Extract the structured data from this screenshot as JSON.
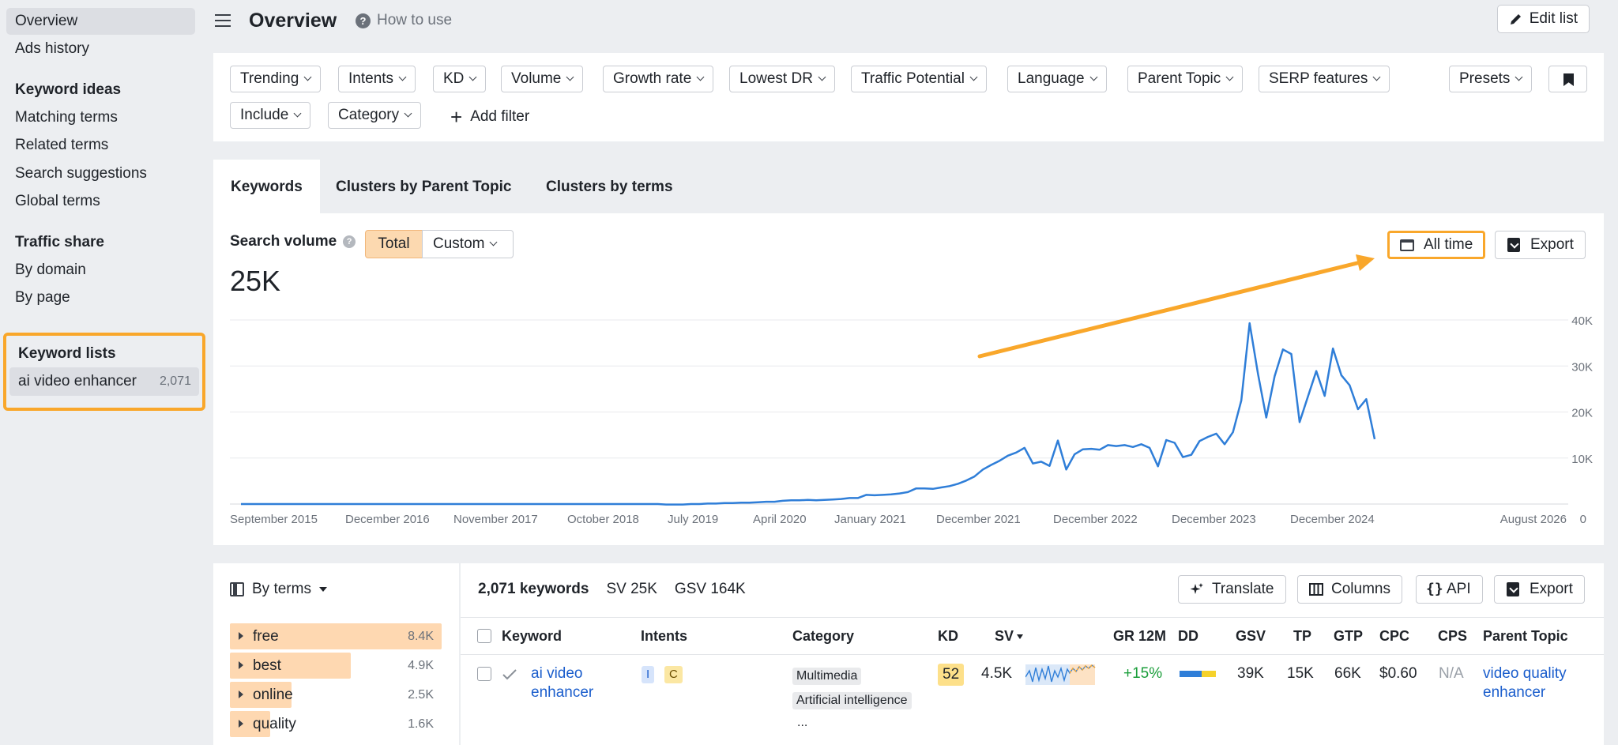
{
  "sidebar": {
    "top_items": [
      {
        "label": "Overview"
      },
      {
        "label": "Ads history"
      }
    ],
    "keyword_ideas": {
      "heading": "Keyword ideas",
      "items": [
        "Matching terms",
        "Related terms",
        "Search suggestions",
        "Global terms"
      ]
    },
    "traffic_share": {
      "heading": "Traffic share",
      "items": [
        "By domain",
        "By page"
      ]
    },
    "keyword_lists": {
      "heading": "Keyword lists",
      "list_name": "ai video enhancer",
      "list_count": "2,071"
    }
  },
  "header": {
    "title": "Overview",
    "how_to": "How to use",
    "edit_list": "Edit list"
  },
  "filters": {
    "row1": [
      "Trending",
      "Intents",
      "KD",
      "Volume",
      "Growth rate",
      "Lowest DR",
      "Traffic Potential",
      "Language",
      "Parent Topic",
      "SERP features"
    ],
    "row2": [
      "Include",
      "Category"
    ],
    "add_filter": "Add filter",
    "presets": "Presets"
  },
  "tabs": [
    "Keywords",
    "Clusters by Parent Topic",
    "Clusters by terms"
  ],
  "search_volume": {
    "label": "Search volume",
    "total": "Total",
    "custom": "Custom",
    "value": "25K",
    "all_time": "All time",
    "export": "Export"
  },
  "chart_data": {
    "type": "line",
    "title": "",
    "xlabel": "",
    "ylabel": "",
    "x_tick_labels": [
      "September 2015",
      "December 2016",
      "November 2017",
      "October 2018",
      "July 2019",
      "April 2020",
      "January 2021",
      "December 2021",
      "December 2022",
      "December 2023",
      "December 2024",
      "August 2026"
    ],
    "y_tick_labels": [
      "0",
      "10K",
      "20K",
      "30K",
      "40K"
    ],
    "ylim": [
      0,
      40000
    ],
    "series": [
      {
        "values": [
          [
            0,
            0
          ],
          [
            1,
            0
          ],
          [
            2,
            0
          ],
          [
            3,
            0
          ],
          [
            4,
            0
          ],
          [
            5,
            0
          ],
          [
            6,
            0
          ],
          [
            7,
            0
          ],
          [
            8,
            0
          ],
          [
            9,
            0
          ],
          [
            10,
            0
          ],
          [
            11,
            0
          ],
          [
            12,
            0
          ],
          [
            13,
            0
          ],
          [
            14,
            0
          ],
          [
            15,
            0
          ],
          [
            16,
            0
          ],
          [
            17,
            0
          ],
          [
            18,
            0
          ],
          [
            19,
            0
          ],
          [
            20,
            0
          ],
          [
            21,
            0
          ],
          [
            22,
            0
          ],
          [
            23,
            0
          ],
          [
            24,
            0
          ],
          [
            25,
            0
          ],
          [
            26,
            0
          ],
          [
            27,
            0
          ],
          [
            28,
            0
          ],
          [
            29,
            0
          ],
          [
            30,
            0
          ],
          [
            31,
            0
          ],
          [
            32,
            0
          ],
          [
            33,
            0
          ],
          [
            34,
            0
          ],
          [
            35,
            0
          ],
          [
            36,
            0
          ],
          [
            37,
            0
          ],
          [
            38,
            0
          ],
          [
            39,
            0
          ],
          [
            40,
            0
          ],
          [
            41,
            0
          ],
          [
            42,
            0
          ],
          [
            43,
            0
          ],
          [
            44,
            0
          ],
          [
            45,
            0
          ],
          [
            46,
            0
          ],
          [
            47,
            0
          ],
          [
            48,
            0
          ],
          [
            49,
            0
          ],
          [
            50,
            0
          ],
          [
            51,
            -100
          ],
          [
            52,
            -100
          ],
          [
            53,
            -100
          ],
          [
            54,
            0
          ],
          [
            55,
            0
          ],
          [
            56,
            100
          ],
          [
            57,
            100
          ],
          [
            58,
            200
          ],
          [
            59,
            200
          ],
          [
            60,
            300
          ],
          [
            61,
            300
          ],
          [
            62,
            400
          ],
          [
            63,
            500
          ],
          [
            64,
            500
          ],
          [
            65,
            700
          ],
          [
            66,
            800
          ],
          [
            67,
            800
          ],
          [
            68,
            900
          ],
          [
            69,
            800
          ],
          [
            70,
            900
          ],
          [
            71,
            1000
          ],
          [
            72,
            1100
          ],
          [
            73,
            1300
          ],
          [
            74,
            1300
          ],
          [
            75,
            2000
          ],
          [
            76,
            1900
          ],
          [
            77,
            2000
          ],
          [
            78,
            2100
          ],
          [
            79,
            2300
          ],
          [
            80,
            2600
          ],
          [
            81,
            3400
          ],
          [
            82,
            3400
          ],
          [
            83,
            3300
          ],
          [
            84,
            3600
          ],
          [
            85,
            3900
          ],
          [
            86,
            4400
          ],
          [
            87,
            5100
          ],
          [
            88,
            6000
          ],
          [
            89,
            7500
          ],
          [
            90,
            8500
          ],
          [
            91,
            9400
          ],
          [
            92,
            10500
          ],
          [
            93,
            11200
          ],
          [
            94,
            12200
          ],
          [
            95,
            8800
          ],
          [
            96,
            9200
          ],
          [
            97,
            8300
          ],
          [
            98,
            13800
          ],
          [
            99,
            7500
          ],
          [
            100,
            10800
          ],
          [
            101,
            11900
          ],
          [
            102,
            12000
          ],
          [
            103,
            11800
          ],
          [
            104,
            12800
          ],
          [
            105,
            12600
          ],
          [
            106,
            12800
          ],
          [
            107,
            12400
          ],
          [
            108,
            13000
          ],
          [
            109,
            12200
          ],
          [
            110,
            8200
          ],
          [
            111,
            13900
          ],
          [
            112,
            13300
          ],
          [
            113,
            10200
          ],
          [
            114,
            10700
          ],
          [
            115,
            13700
          ],
          [
            116,
            14600
          ],
          [
            117,
            15300
          ],
          [
            118,
            13000
          ],
          [
            119,
            15600
          ],
          [
            120,
            22500
          ],
          [
            121,
            39300
          ],
          [
            122,
            28300
          ],
          [
            123,
            18800
          ],
          [
            124,
            27800
          ],
          [
            125,
            33600
          ],
          [
            126,
            32600
          ],
          [
            127,
            17800
          ],
          [
            128,
            23400
          ],
          [
            129,
            28900
          ],
          [
            130,
            23500
          ],
          [
            131,
            33800
          ],
          [
            132,
            28000
          ],
          [
            133,
            25800
          ],
          [
            134,
            20600
          ],
          [
            135,
            22800
          ],
          [
            136,
            14100
          ]
        ]
      }
    ]
  },
  "terms_panel": {
    "toggle": "By terms",
    "items": [
      {
        "label": "free",
        "count": "8.4K",
        "fraction": 1.0
      },
      {
        "label": "best",
        "count": "4.9K",
        "fraction": 0.57
      },
      {
        "label": "online",
        "count": "2.5K",
        "fraction": 0.29
      },
      {
        "label": "quality",
        "count": "1.6K",
        "fraction": 0.19
      }
    ]
  },
  "table": {
    "summary": {
      "count": "2,071 keywords",
      "sv": "SV 25K",
      "gsv": "GSV 164K"
    },
    "tools": [
      "Translate",
      "Columns",
      "API",
      "Export"
    ],
    "columns": [
      "Keyword",
      "Intents",
      "Category",
      "KD",
      "SV",
      "GR 12M",
      "DD",
      "GSV",
      "TP",
      "GTP",
      "CPC",
      "CPS",
      "Parent Topic"
    ],
    "rows": [
      {
        "keyword_line1": "ai video",
        "keyword_line2": "enhancer",
        "intents": [
          "I",
          "C"
        ],
        "categories": [
          "Multimedia",
          "Artificial intelligence"
        ],
        "more": "...",
        "kd": "52",
        "sv": "4.5K",
        "gr": "+15%",
        "gsv": "39K",
        "tp": "15K",
        "gtp": "66K",
        "cpc": "$0.60",
        "cps": "N/A",
        "parent_line1": "video quality",
        "parent_line2": "enhancer"
      }
    ]
  },
  "colors": {
    "accent_orange": "#f9a72b",
    "line_blue": "#2f7ed8",
    "kd_yellow": "#fde08a",
    "gr_green": "#1a9e3a",
    "link_blue": "#1a5dcc"
  }
}
